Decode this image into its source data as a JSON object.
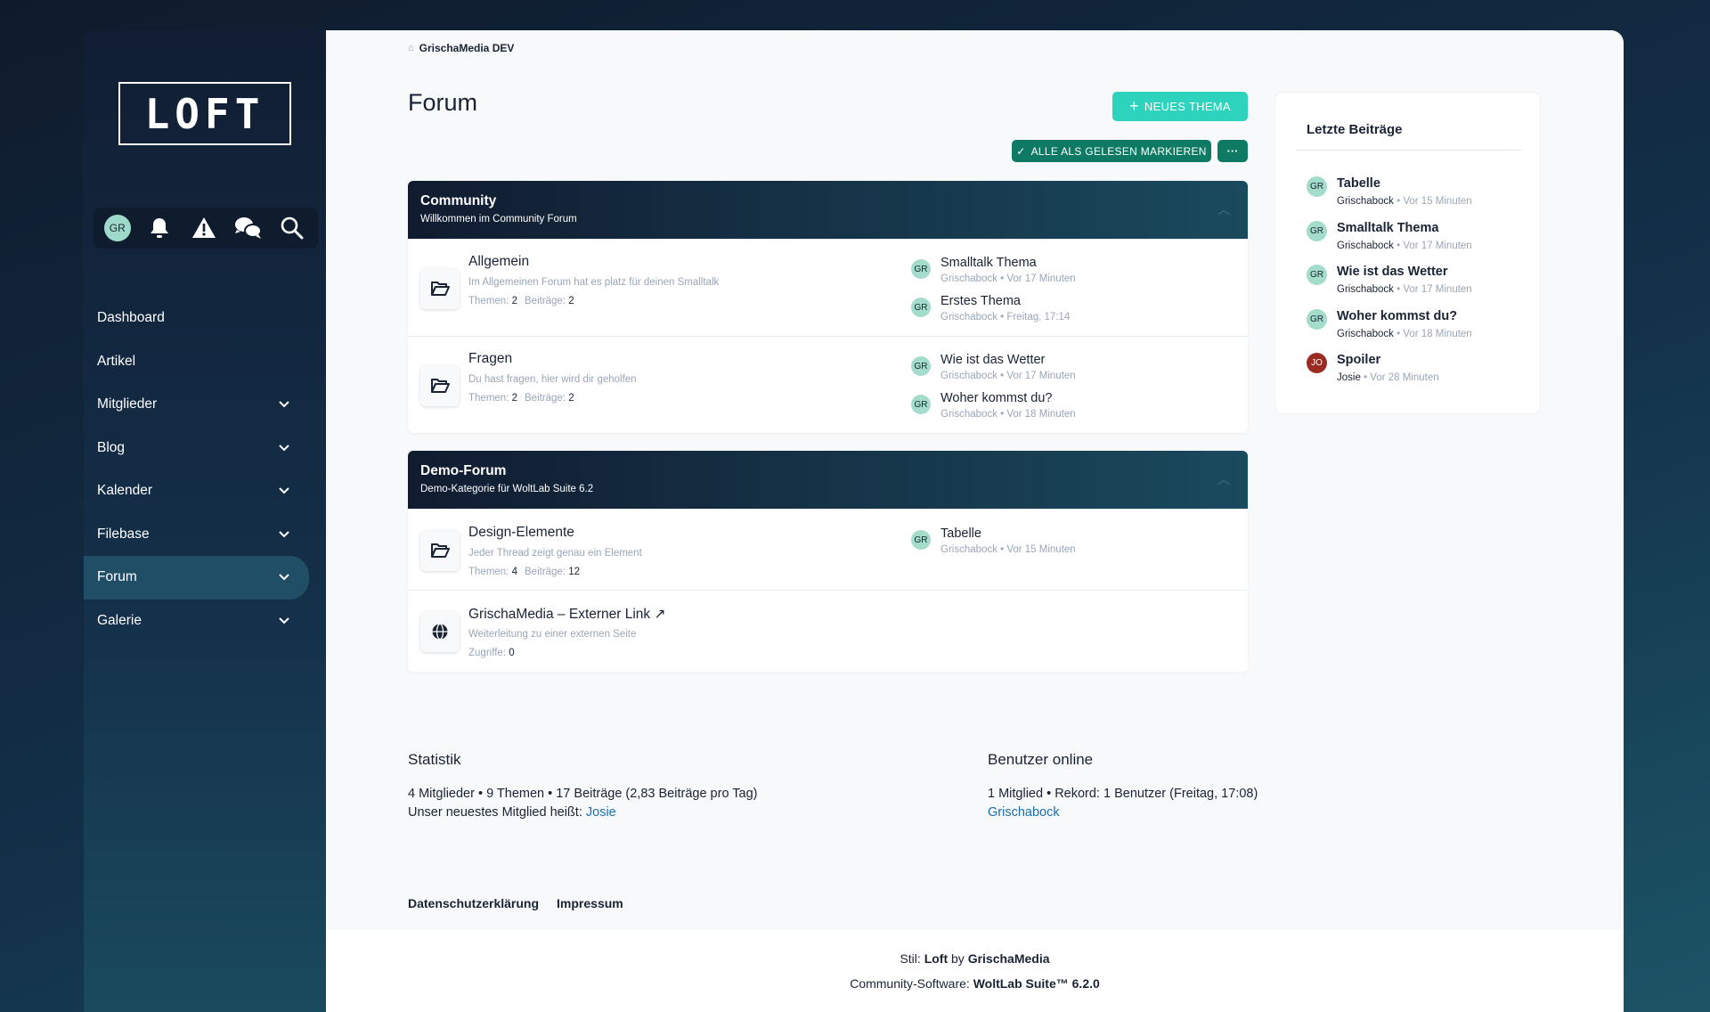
{
  "logo": "LOFT",
  "user": {
    "initials": "GR"
  },
  "iconbar": [
    "avatar",
    "bell-icon",
    "warning-icon",
    "chat-icon",
    "search-icon"
  ],
  "nav": [
    {
      "label": "Dashboard",
      "dropdown": false
    },
    {
      "label": "Artikel",
      "dropdown": false
    },
    {
      "label": "Mitglieder",
      "dropdown": true
    },
    {
      "label": "Blog",
      "dropdown": true
    },
    {
      "label": "Kalender",
      "dropdown": true
    },
    {
      "label": "Filebase",
      "dropdown": true
    },
    {
      "label": "Forum",
      "dropdown": true,
      "active": true
    },
    {
      "label": "Galerie",
      "dropdown": true
    }
  ],
  "breadcrumb": "GrischaMedia DEV",
  "page_title": "Forum",
  "buttons": {
    "new_topic": "NEUES THEMA",
    "mark_all_read": "ALLE ALS GELESEN MARKIEREN",
    "more": "···"
  },
  "categories": [
    {
      "title": "Community",
      "description": "Willkommen im Community Forum",
      "boards": [
        {
          "name": "Allgemein",
          "description": "Im Allgemeinen Forum hat es platz für deinen Smalltalk",
          "stats": [
            {
              "label": "Themen:",
              "value": "2"
            },
            {
              "label": "Beiträge:",
              "value": "2"
            }
          ],
          "last_posts": [
            {
              "avatar": "GR",
              "title": "Smalltalk Thema",
              "meta": "Grischabock • Vor 17 Minuten"
            },
            {
              "avatar": "GR",
              "title": "Erstes Thema",
              "meta": "Grischabock • Freitag, 17:14"
            }
          ]
        },
        {
          "name": "Fragen",
          "description": "Du hast fragen, hier wird dir geholfen",
          "stats": [
            {
              "label": "Themen:",
              "value": "2"
            },
            {
              "label": "Beiträge:",
              "value": "2"
            }
          ],
          "last_posts": [
            {
              "avatar": "GR",
              "title": "Wie ist das Wetter",
              "meta": "Grischabock • Vor 17 Minuten"
            },
            {
              "avatar": "GR",
              "title": "Woher kommst du?",
              "meta": "Grischabock • Vor 18 Minuten"
            }
          ]
        }
      ]
    },
    {
      "title": "Demo-Forum",
      "description": "Demo-Kategorie für WoltLab Suite 6.2",
      "boards": [
        {
          "name": "Design-Elemente",
          "description": "Jeder Thread zeigt genau ein Element",
          "stats": [
            {
              "label": "Themen:",
              "value": "4"
            },
            {
              "label": "Beiträge:",
              "value": "12"
            }
          ],
          "last_posts": [
            {
              "avatar": "GR",
              "title": "Tabelle",
              "meta": "Grischabock • Vor 15 Minuten"
            }
          ]
        },
        {
          "name": "GrischaMedia – Externer Link ↗",
          "description": "Weiterleitung zu einer externen Seite",
          "stats": [
            {
              "label": "Zugriffe:",
              "value": "0"
            }
          ],
          "last_posts": []
        }
      ]
    }
  ],
  "recent": {
    "title": "Letzte Beiträge",
    "items": [
      {
        "avatar": "GR",
        "title": "Tabelle",
        "author": "Grischabock",
        "time": "• Vor 15 Minuten"
      },
      {
        "avatar": "GR",
        "title": "Smalltalk Thema",
        "author": "Grischabock",
        "time": "• Vor 17 Minuten"
      },
      {
        "avatar": "GR",
        "title": "Wie ist das Wetter",
        "author": "Grischabock",
        "time": "• Vor 17 Minuten"
      },
      {
        "avatar": "GR",
        "title": "Woher kommst du?",
        "author": "Grischabock",
        "time": "• Vor 18 Minuten"
      },
      {
        "avatar": "JO",
        "title": "Spoiler",
        "author": "Josie",
        "time": "• Vor 28 Minuten",
        "color": "#9b2a22"
      }
    ]
  },
  "stats": {
    "title": "Statistik",
    "line1": "4 Mitglieder • 9 Themen • 17 Beiträge (2,83 Beiträge pro Tag)",
    "line2": "Unser neuestes Mitglied heißt:",
    "newest": "Josie"
  },
  "online": {
    "title": "Benutzer online",
    "line1": "1 Mitglied • Rekord: 1 Benutzer (Freitag, 17:08)",
    "user": "Grischabock"
  },
  "footer_links": [
    "Datenschutzerklärung",
    "Impressum"
  ],
  "footer": {
    "style_label": "Stil:",
    "style_name": "Loft",
    "by": "by",
    "style_author": "GrischaMedia",
    "software_label": "Community-Software:",
    "software": "WoltLab Suite™ 6.2.0"
  }
}
